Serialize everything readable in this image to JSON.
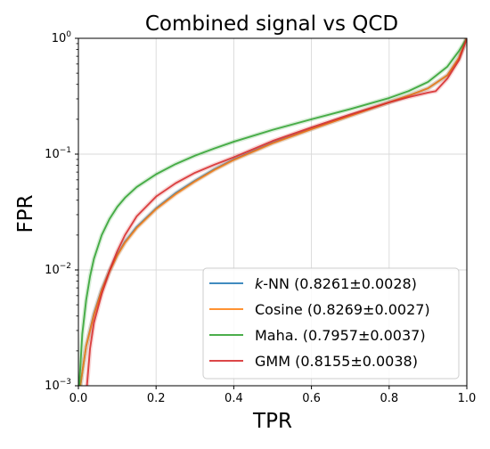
{
  "chart_data": {
    "type": "line",
    "title": "Combined signal vs QCD",
    "xlabel": "TPR",
    "ylabel": "FPR",
    "xlim": [
      0,
      1
    ],
    "ylim": [
      0.001,
      1
    ],
    "yscale": "log",
    "grid": true,
    "legend_position": "lower-right",
    "x_ticks": [
      {
        "value": 0.0,
        "label": "0.0"
      },
      {
        "value": 0.2,
        "label": "0.2"
      },
      {
        "value": 0.4,
        "label": "0.4"
      },
      {
        "value": 0.6,
        "label": "0.6"
      },
      {
        "value": 0.8,
        "label": "0.8"
      },
      {
        "value": 1.0,
        "label": "1.0"
      }
    ],
    "y_ticks": [
      {
        "value": 0.001,
        "base": "10",
        "exp": "−3"
      },
      {
        "value": 0.01,
        "base": "10",
        "exp": "−2"
      },
      {
        "value": 0.1,
        "base": "10",
        "exp": "−1"
      },
      {
        "value": 1,
        "base": "10",
        "exp": "0"
      }
    ],
    "series": [
      {
        "name_italic": "k",
        "name": "-NN (0.8261±0.0028)",
        "color": "#1f77b4",
        "x": [
          0.005,
          0.02,
          0.04,
          0.06,
          0.08,
          0.1,
          0.12,
          0.15,
          0.2,
          0.25,
          0.3,
          0.35,
          0.4,
          0.5,
          0.6,
          0.7,
          0.8,
          0.85,
          0.9,
          0.95,
          0.98,
          1.0
        ],
        "y": [
          0.001,
          0.0022,
          0.0042,
          0.0068,
          0.0098,
          0.0135,
          0.0175,
          0.0235,
          0.034,
          0.046,
          0.059,
          0.074,
          0.09,
          0.125,
          0.165,
          0.215,
          0.28,
          0.32,
          0.37,
          0.48,
          0.68,
          1.0
        ]
      },
      {
        "name": "Cosine (0.8269±0.0027)",
        "color": "#ff7f0e",
        "x": [
          0.005,
          0.02,
          0.04,
          0.06,
          0.08,
          0.1,
          0.12,
          0.15,
          0.2,
          0.25,
          0.3,
          0.35,
          0.4,
          0.5,
          0.6,
          0.7,
          0.8,
          0.85,
          0.9,
          0.95,
          0.98,
          1.0
        ],
        "y": [
          0.001,
          0.0022,
          0.0041,
          0.0067,
          0.0097,
          0.0133,
          0.0172,
          0.023,
          0.0335,
          0.045,
          0.058,
          0.073,
          0.089,
          0.124,
          0.164,
          0.214,
          0.28,
          0.32,
          0.37,
          0.48,
          0.68,
          1.0
        ]
      },
      {
        "name": "Maha. (0.7957±0.0037)",
        "color": "#2ca02c",
        "x": [
          0.002,
          0.01,
          0.02,
          0.03,
          0.04,
          0.06,
          0.08,
          0.1,
          0.12,
          0.15,
          0.2,
          0.25,
          0.3,
          0.35,
          0.4,
          0.5,
          0.6,
          0.7,
          0.8,
          0.85,
          0.9,
          0.95,
          0.98,
          1.0
        ],
        "y": [
          0.001,
          0.0028,
          0.0055,
          0.0088,
          0.0125,
          0.02,
          0.0275,
          0.035,
          0.042,
          0.052,
          0.067,
          0.082,
          0.097,
          0.112,
          0.128,
          0.162,
          0.2,
          0.245,
          0.305,
          0.35,
          0.42,
          0.57,
          0.78,
          1.0
        ]
      },
      {
        "name": "GMM (0.8155±0.0038)",
        "color": "#d62728",
        "x": [
          0.022,
          0.03,
          0.04,
          0.06,
          0.08,
          0.1,
          0.12,
          0.15,
          0.2,
          0.25,
          0.3,
          0.35,
          0.4,
          0.5,
          0.6,
          0.7,
          0.8,
          0.85,
          0.9,
          0.92,
          0.95,
          0.98,
          1.0
        ],
        "y": [
          0.001,
          0.0021,
          0.0035,
          0.0062,
          0.0098,
          0.0145,
          0.02,
          0.029,
          0.043,
          0.056,
          0.069,
          0.081,
          0.094,
          0.13,
          0.17,
          0.22,
          0.28,
          0.31,
          0.34,
          0.35,
          0.45,
          0.65,
          1.0
        ]
      }
    ]
  }
}
